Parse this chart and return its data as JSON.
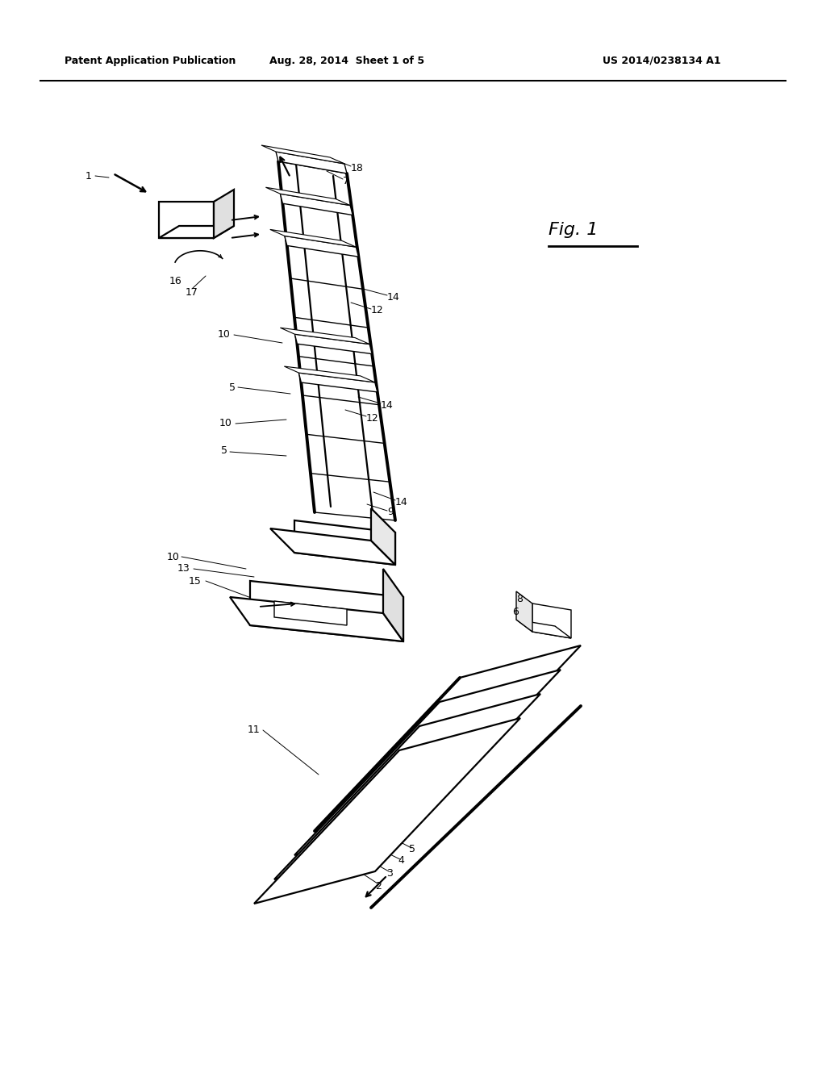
{
  "bg_color": "#ffffff",
  "header_left": "Patent Application Publication",
  "header_mid": "Aug. 28, 2014  Sheet 1 of 5",
  "header_right": "US 2014/0238134 A1",
  "fig_label": "Fig. 1",
  "lw_thick": 2.8,
  "lw_med": 1.6,
  "lw_thin": 1.0,
  "lw_hair": 0.7,
  "label_fs": 9,
  "header_fs": 9
}
